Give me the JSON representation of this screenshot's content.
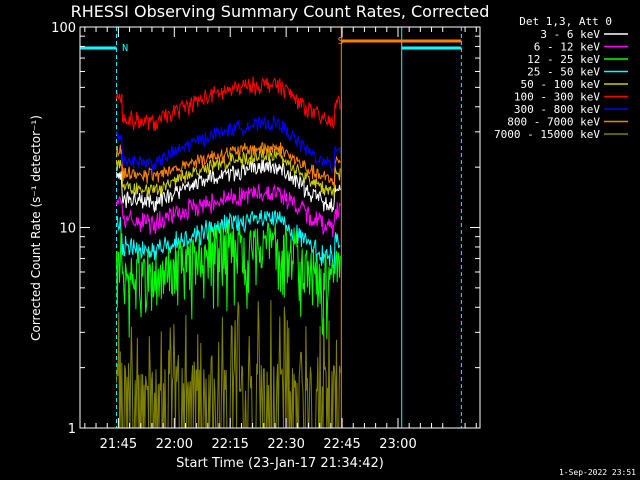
{
  "chart_data": {
    "type": "line",
    "title": "RHESSI Observing Summary Count Rates, Corrected",
    "xlabel": "Start Time (23-Jan-17 21:34:42)",
    "ylabel": "Corrected Count Rate (s⁻¹ detector⁻¹)",
    "y_scale": "log",
    "ylim": [
      1,
      100
    ],
    "y_ticks": [
      "1",
      "10",
      "100"
    ],
    "x_ticks": [
      {
        "t": 45,
        "label": "21:45"
      },
      {
        "t": 60,
        "label": "22:00"
      },
      {
        "t": 75,
        "label": "22:15"
      },
      {
        "t": 90,
        "label": "22:30"
      },
      {
        "t": 105,
        "label": "22:45"
      },
      {
        "t": 120,
        "label": "23:00"
      }
    ],
    "x_range_minutes": [
      34.7,
      142
    ],
    "legend_placement": "outside-right",
    "legend_header": "Det 1,3, Att 0",
    "data_start_min": 44.5,
    "data_end_min": 104.5,
    "series": [
      {
        "name": "3 - 6 keV",
        "color": "#ffffff",
        "start": 14,
        "peak": 20,
        "end": 13,
        "noise": 0.06
      },
      {
        "name": "6 - 12 keV",
        "color": "#ff00ff",
        "start": 11,
        "peak": 15,
        "end": 10,
        "noise": 0.07
      },
      {
        "name": "12 - 25 keV",
        "color": "#00ff00",
        "start": 6,
        "peak": 8.5,
        "end": 5.5,
        "noise": 0.2
      },
      {
        "name": "25 - 50 keV",
        "color": "#00ffff",
        "start": 8,
        "peak": 11,
        "end": 7,
        "noise": 0.08
      },
      {
        "name": "50 - 100 keV",
        "color": "#cccc00",
        "start": 16,
        "peak": 23,
        "end": 15,
        "noise": 0.05
      },
      {
        "name": "100 - 300 keV",
        "color": "#ff0000",
        "start": 35,
        "peak": 52,
        "end": 33,
        "noise": 0.06
      },
      {
        "name": "300 - 800 keV",
        "color": "#0000ff",
        "start": 22,
        "peak": 33,
        "end": 20,
        "noise": 0.05
      },
      {
        "name": "800 - 7000 keV",
        "color": "#ff8000",
        "start": 19,
        "peak": 25,
        "end": 17,
        "noise": 0.05
      },
      {
        "name": "7000 - 15000 keV",
        "color": "#808000",
        "start": 1.5,
        "peak": 2.5,
        "end": 1.5,
        "noise": 0.5
      }
    ],
    "annotations": [
      {
        "label": "N",
        "color": "#00ffff"
      },
      {
        "label": "S",
        "color": "#ff8000"
      }
    ]
  },
  "timestamp": "1-Sep-2022 23:51"
}
